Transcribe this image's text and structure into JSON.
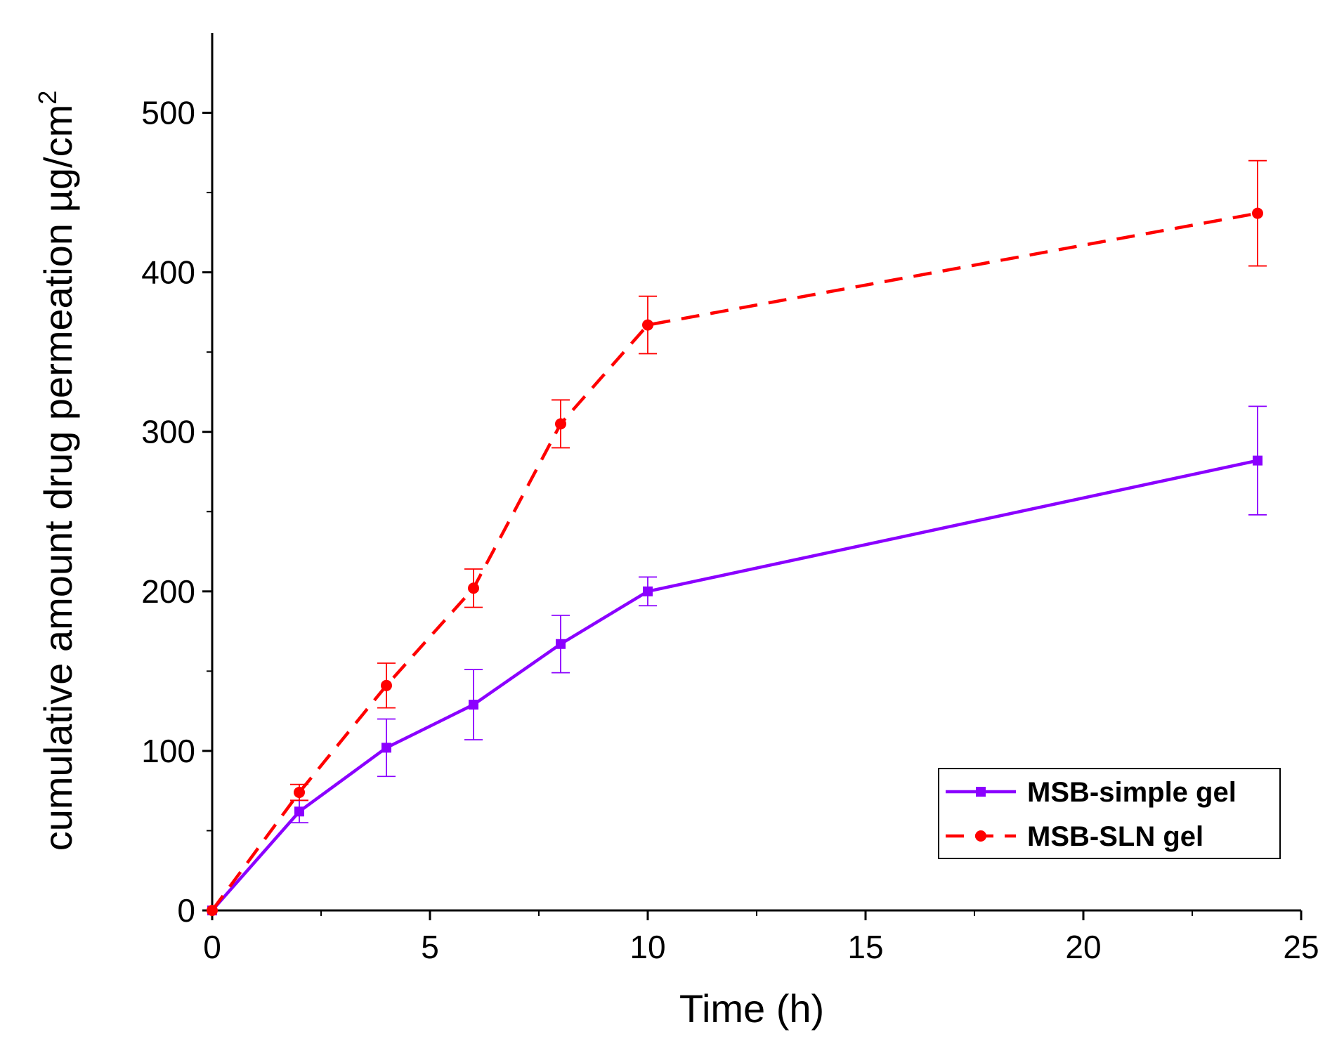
{
  "chart_data": {
    "type": "line",
    "title": "",
    "xlabel": "Time (h)",
    "ylabel": "cumulative amount drug permeation µg/cm",
    "ylabel_superscript": "2",
    "xlim": [
      0,
      25
    ],
    "ylim": [
      0,
      550
    ],
    "x_ticks": [
      0,
      5,
      10,
      15,
      20,
      25
    ],
    "y_ticks": [
      0,
      100,
      200,
      300,
      400,
      500
    ],
    "x_minor_step": 2.5,
    "y_minor_step": 50,
    "grid": false,
    "legend_position": "bottom-right",
    "series": [
      {
        "name": "MSB-simple gel",
        "color": "#8B00FF",
        "line_style": "solid",
        "marker": "square",
        "x": [
          0,
          2,
          4,
          6,
          8,
          10,
          24
        ],
        "y": [
          0,
          62,
          102,
          129,
          167,
          200,
          282
        ],
        "error": [
          0,
          7,
          18,
          22,
          18,
          9,
          34
        ]
      },
      {
        "name": "MSB-SLN gel",
        "color": "#FF0000",
        "line_style": "dashed",
        "marker": "circle",
        "x": [
          0,
          2,
          4,
          6,
          8,
          10,
          24
        ],
        "y": [
          0,
          74,
          141,
          202,
          305,
          367,
          437
        ],
        "error": [
          0,
          5,
          14,
          12,
          15,
          18,
          33
        ]
      }
    ]
  }
}
